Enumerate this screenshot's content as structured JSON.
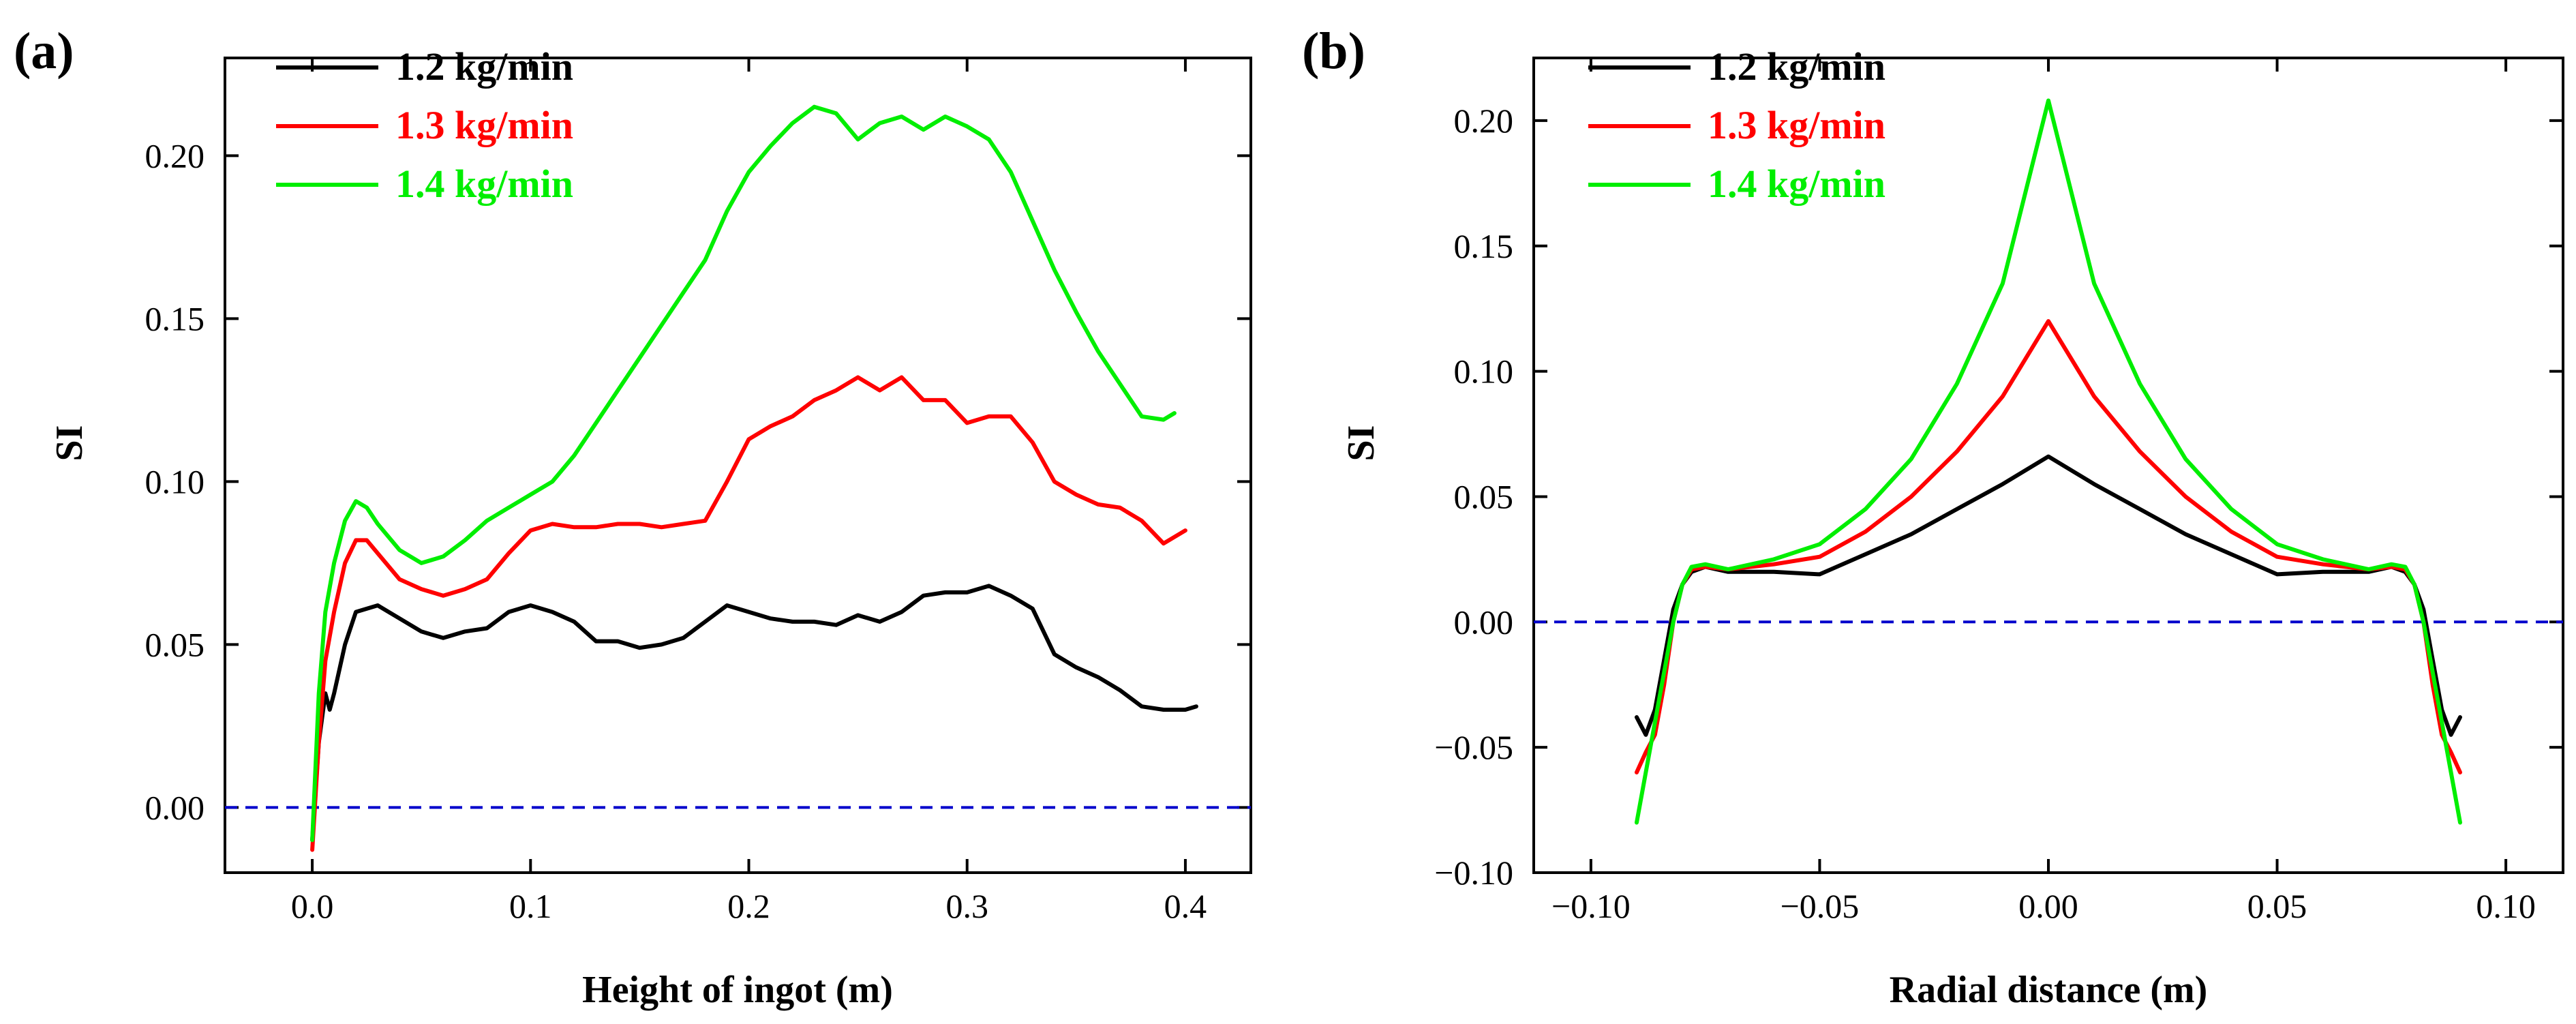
{
  "chart_data": [
    {
      "type": "line",
      "panel_label": "(a)",
      "xlabel": "Height of ingot (m)",
      "ylabel": "SI",
      "xlim": [
        -0.04,
        0.43
      ],
      "ylim": [
        -0.02,
        0.23
      ],
      "xticks": [
        0.0,
        0.1,
        0.2,
        0.3,
        0.4
      ],
      "xtick_labels": [
        "0.0",
        "0.1",
        "0.2",
        "0.3",
        "0.4"
      ],
      "yticks": [
        0.0,
        0.05,
        0.1,
        0.15,
        0.2
      ],
      "ytick_labels": [
        "0.00",
        "0.05",
        "0.10",
        "0.15",
        "0.20"
      ],
      "grid": false,
      "legend_position": "top-left",
      "reference_line": {
        "y": 0.0,
        "color": "#0000cc",
        "style": "dashed"
      },
      "series": [
        {
          "name": "1.2 kg/min",
          "color": "#000000",
          "x": [
            0.0,
            0.003,
            0.006,
            0.008,
            0.01,
            0.015,
            0.02,
            0.03,
            0.04,
            0.05,
            0.06,
            0.07,
            0.08,
            0.09,
            0.1,
            0.11,
            0.12,
            0.13,
            0.14,
            0.15,
            0.16,
            0.17,
            0.18,
            0.19,
            0.2,
            0.21,
            0.22,
            0.23,
            0.24,
            0.25,
            0.26,
            0.27,
            0.28,
            0.29,
            0.3,
            0.31,
            0.32,
            0.33,
            0.34,
            0.35,
            0.36,
            0.37,
            0.38,
            0.39,
            0.4,
            0.405
          ],
          "y": [
            -0.01,
            0.02,
            0.035,
            0.03,
            0.035,
            0.05,
            0.06,
            0.062,
            0.058,
            0.054,
            0.052,
            0.054,
            0.055,
            0.06,
            0.062,
            0.06,
            0.057,
            0.051,
            0.051,
            0.049,
            0.05,
            0.052,
            0.057,
            0.062,
            0.06,
            0.058,
            0.057,
            0.057,
            0.056,
            0.059,
            0.057,
            0.06,
            0.065,
            0.066,
            0.066,
            0.068,
            0.065,
            0.061,
            0.047,
            0.043,
            0.04,
            0.036,
            0.031,
            0.03,
            0.03,
            0.031
          ]
        },
        {
          "name": "1.3 kg/min",
          "color": "#ff0000",
          "x": [
            0.0,
            0.003,
            0.006,
            0.01,
            0.015,
            0.02,
            0.025,
            0.03,
            0.04,
            0.05,
            0.06,
            0.07,
            0.08,
            0.09,
            0.1,
            0.11,
            0.12,
            0.13,
            0.14,
            0.15,
            0.16,
            0.17,
            0.18,
            0.19,
            0.2,
            0.21,
            0.22,
            0.23,
            0.24,
            0.25,
            0.26,
            0.27,
            0.28,
            0.29,
            0.3,
            0.31,
            0.32,
            0.33,
            0.34,
            0.35,
            0.36,
            0.37,
            0.38,
            0.39,
            0.4
          ],
          "y": [
            -0.013,
            0.02,
            0.045,
            0.06,
            0.075,
            0.082,
            0.082,
            0.078,
            0.07,
            0.067,
            0.065,
            0.067,
            0.07,
            0.078,
            0.085,
            0.087,
            0.086,
            0.086,
            0.087,
            0.087,
            0.086,
            0.087,
            0.088,
            0.1,
            0.113,
            0.117,
            0.12,
            0.125,
            0.128,
            0.132,
            0.128,
            0.132,
            0.125,
            0.125,
            0.118,
            0.12,
            0.12,
            0.112,
            0.1,
            0.096,
            0.093,
            0.092,
            0.088,
            0.081,
            0.085
          ]
        },
        {
          "name": "1.4 kg/min",
          "color": "#00ee00",
          "x": [
            0.0,
            0.003,
            0.006,
            0.01,
            0.015,
            0.02,
            0.025,
            0.03,
            0.04,
            0.05,
            0.06,
            0.07,
            0.08,
            0.09,
            0.1,
            0.11,
            0.12,
            0.13,
            0.14,
            0.15,
            0.16,
            0.17,
            0.18,
            0.19,
            0.2,
            0.21,
            0.22,
            0.23,
            0.24,
            0.25,
            0.26,
            0.27,
            0.28,
            0.29,
            0.3,
            0.31,
            0.32,
            0.33,
            0.34,
            0.35,
            0.36,
            0.37,
            0.38,
            0.39,
            0.395
          ],
          "y": [
            -0.01,
            0.035,
            0.06,
            0.075,
            0.088,
            0.094,
            0.092,
            0.087,
            0.079,
            0.075,
            0.077,
            0.082,
            0.088,
            0.092,
            0.096,
            0.1,
            0.108,
            0.118,
            0.128,
            0.138,
            0.148,
            0.158,
            0.168,
            0.183,
            0.195,
            0.203,
            0.21,
            0.215,
            0.213,
            0.205,
            0.21,
            0.212,
            0.208,
            0.212,
            0.209,
            0.205,
            0.195,
            0.18,
            0.165,
            0.152,
            0.14,
            0.13,
            0.12,
            0.119,
            0.121
          ]
        }
      ]
    },
    {
      "type": "line",
      "panel_label": "(b)",
      "xlabel": "Radial distance (m)",
      "ylabel": "SI",
      "xlim": [
        -0.1125,
        0.1125
      ],
      "ylim": [
        -0.1,
        0.225
      ],
      "xticks": [
        -0.1,
        -0.05,
        0.0,
        0.05,
        0.1
      ],
      "xtick_labels": [
        "−0.10",
        "−0.05",
        "0.00",
        "0.05",
        "0.10"
      ],
      "yticks": [
        -0.1,
        -0.05,
        0.0,
        0.05,
        0.1,
        0.15,
        0.2
      ],
      "ytick_labels": [
        "−0.10",
        "−0.05",
        "0.00",
        "0.05",
        "0.10",
        "0.15",
        "0.20"
      ],
      "grid": false,
      "legend_position": "top-left",
      "reference_line": {
        "y": 0.0,
        "color": "#0000cc",
        "style": "dashed"
      },
      "series": [
        {
          "name": "1.2 kg/min",
          "color": "#000000",
          "x": [
            -0.09,
            -0.088,
            -0.086,
            -0.084,
            -0.082,
            -0.08,
            -0.078,
            -0.075,
            -0.07,
            -0.06,
            -0.05,
            -0.04,
            -0.03,
            -0.02,
            -0.01,
            0.0,
            0.01,
            0.02,
            0.03,
            0.04,
            0.05,
            0.06,
            0.07,
            0.075,
            0.078,
            0.08,
            0.082,
            0.084,
            0.086,
            0.088,
            0.09
          ],
          "y": [
            -0.038,
            -0.045,
            -0.035,
            -0.015,
            0.005,
            0.015,
            0.02,
            0.022,
            0.02,
            0.02,
            0.019,
            0.027,
            0.035,
            0.045,
            0.055,
            0.066,
            0.055,
            0.045,
            0.035,
            0.027,
            0.019,
            0.02,
            0.02,
            0.022,
            0.02,
            0.015,
            0.005,
            -0.015,
            -0.035,
            -0.045,
            -0.038
          ]
        },
        {
          "name": "1.3 kg/min",
          "color": "#ff0000",
          "x": [
            -0.09,
            -0.088,
            -0.086,
            -0.084,
            -0.082,
            -0.08,
            -0.078,
            -0.075,
            -0.07,
            -0.06,
            -0.05,
            -0.04,
            -0.03,
            -0.02,
            -0.01,
            0.0,
            0.01,
            0.02,
            0.03,
            0.04,
            0.05,
            0.06,
            0.07,
            0.075,
            0.078,
            0.08,
            0.082,
            0.084,
            0.086,
            0.088,
            0.09
          ],
          "y": [
            -0.06,
            -0.052,
            -0.045,
            -0.025,
            0.0,
            0.015,
            0.021,
            0.022,
            0.021,
            0.023,
            0.026,
            0.036,
            0.05,
            0.068,
            0.09,
            0.12,
            0.09,
            0.068,
            0.05,
            0.036,
            0.026,
            0.023,
            0.021,
            0.022,
            0.021,
            0.015,
            0.0,
            -0.025,
            -0.045,
            -0.052,
            -0.06
          ]
        },
        {
          "name": "1.4 kg/min",
          "color": "#00ee00",
          "x": [
            -0.09,
            -0.088,
            -0.086,
            -0.084,
            -0.082,
            -0.08,
            -0.078,
            -0.075,
            -0.07,
            -0.06,
            -0.05,
            -0.04,
            -0.03,
            -0.02,
            -0.01,
            0.0,
            0.01,
            0.02,
            0.03,
            0.04,
            0.05,
            0.06,
            0.07,
            0.075,
            0.078,
            0.08,
            0.082,
            0.084,
            0.086,
            0.088,
            0.09
          ],
          "y": [
            -0.08,
            -0.06,
            -0.04,
            -0.02,
            0.0,
            0.015,
            0.022,
            0.023,
            0.021,
            0.025,
            0.031,
            0.045,
            0.065,
            0.095,
            0.135,
            0.208,
            0.135,
            0.095,
            0.065,
            0.045,
            0.031,
            0.025,
            0.021,
            0.023,
            0.022,
            0.015,
            0.0,
            -0.02,
            -0.04,
            -0.06,
            -0.08
          ]
        }
      ]
    }
  ]
}
